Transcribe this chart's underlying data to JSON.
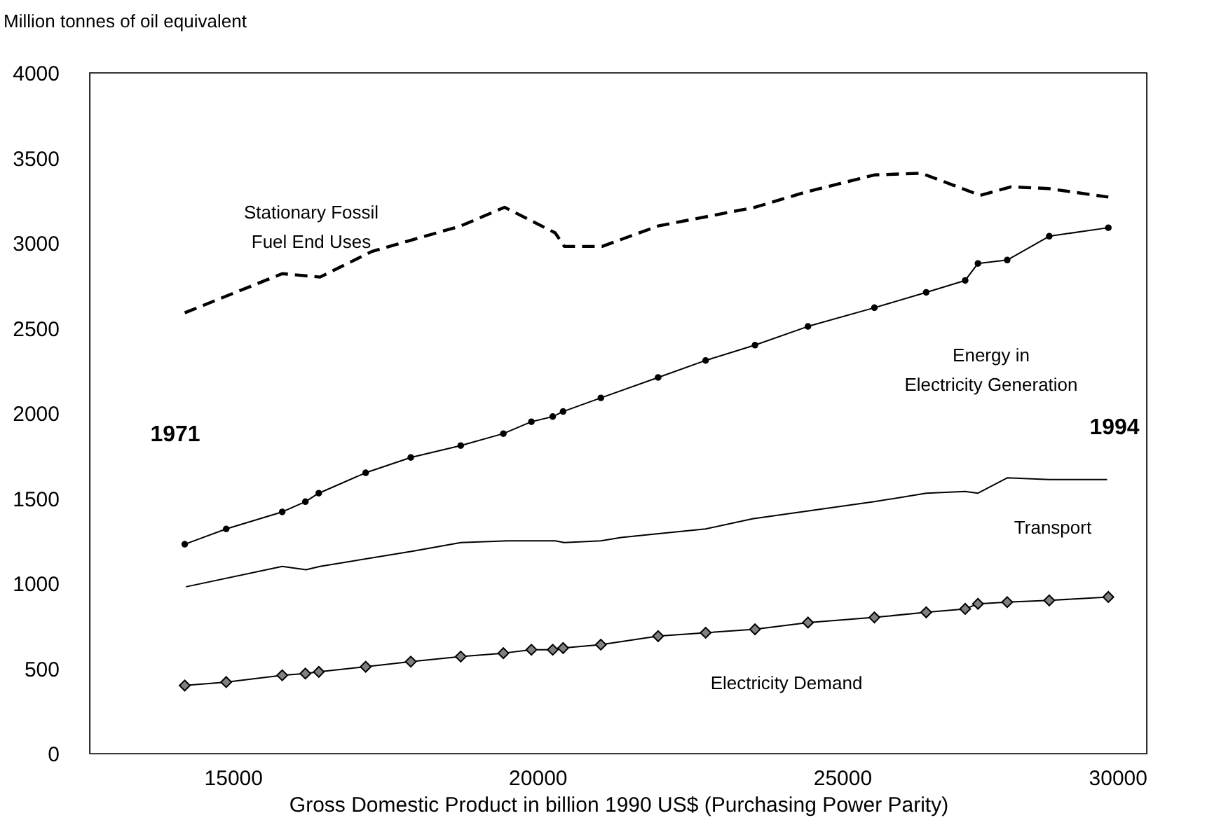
{
  "chart_data": {
    "type": "line",
    "xlabel": "Gross Domestic Product in billion 1990 US$ (Purchasing Power Parity)",
    "ylabel": "Million tonnes of oil equivalent",
    "xlim": [
      12650,
      30000
    ],
    "xticks": [
      15000,
      20000,
      25000,
      30000
    ],
    "ylim": [
      0,
      4000
    ],
    "yticks": [
      0,
      500,
      1000,
      1500,
      2000,
      2500,
      3000,
      3500,
      4000
    ],
    "grid": false,
    "series": [
      {
        "name": "Stationary Fossil\nFuel End Uses",
        "color": "#000000",
        "line_style": "dashed",
        "marker": "none",
        "x": [
          14210,
          15810,
          16430,
          17280,
          18740,
          19460,
          20290,
          20440,
          21060,
          21980,
          23570,
          24410,
          25530,
          26300,
          27270,
          27770,
          28390,
          29370
        ],
        "values": [
          2590,
          2820,
          2800,
          2950,
          3100,
          3210,
          3060,
          2980,
          2980,
          3100,
          3210,
          3300,
          3400,
          3410,
          3280,
          3330,
          3320,
          3270
        ]
      },
      {
        "name": "Energy in\nElectricity Generation",
        "color": "#000000",
        "line_style": "solid",
        "marker": "circle",
        "x": [
          14210,
          14890,
          15810,
          16190,
          16410,
          17180,
          17920,
          18740,
          19440,
          19900,
          20250,
          20420,
          21040,
          21980,
          22760,
          23570,
          24440,
          25530,
          26380,
          27020,
          27230,
          27710,
          28400,
          29370
        ],
        "values": [
          1230,
          1320,
          1420,
          1480,
          1530,
          1650,
          1740,
          1810,
          1880,
          1950,
          1980,
          2010,
          2090,
          2210,
          2310,
          2400,
          2510,
          2620,
          2710,
          2780,
          2880,
          2900,
          3040,
          3090
        ]
      },
      {
        "name": "Transport",
        "color": "#000000",
        "line_style": "solid",
        "marker": "none",
        "x": [
          14230,
          15810,
          16200,
          16430,
          17970,
          18740,
          19510,
          20290,
          20440,
          21040,
          21370,
          22760,
          23530,
          25530,
          26380,
          27020,
          27230,
          27710,
          28400,
          29350
        ],
        "values": [
          980,
          1100,
          1080,
          1100,
          1190,
          1240,
          1250,
          1250,
          1240,
          1250,
          1270,
          1320,
          1380,
          1480,
          1530,
          1540,
          1530,
          1620,
          1610,
          1610
        ]
      },
      {
        "name": "Electricity Demand",
        "color": "#000000",
        "line_style": "solid",
        "marker": "diamond",
        "x": [
          14210,
          14890,
          15810,
          16190,
          16410,
          17180,
          17920,
          18740,
          19440,
          19900,
          20250,
          20420,
          21040,
          21980,
          22760,
          23570,
          24440,
          25530,
          26380,
          27020,
          27230,
          27710,
          28400,
          29370
        ],
        "values": [
          400,
          420,
          460,
          470,
          480,
          510,
          540,
          570,
          590,
          610,
          610,
          620,
          640,
          690,
          710,
          730,
          770,
          800,
          830,
          850,
          880,
          890,
          900,
          920
        ]
      }
    ],
    "annotations": [
      "1971",
      "1994"
    ]
  }
}
